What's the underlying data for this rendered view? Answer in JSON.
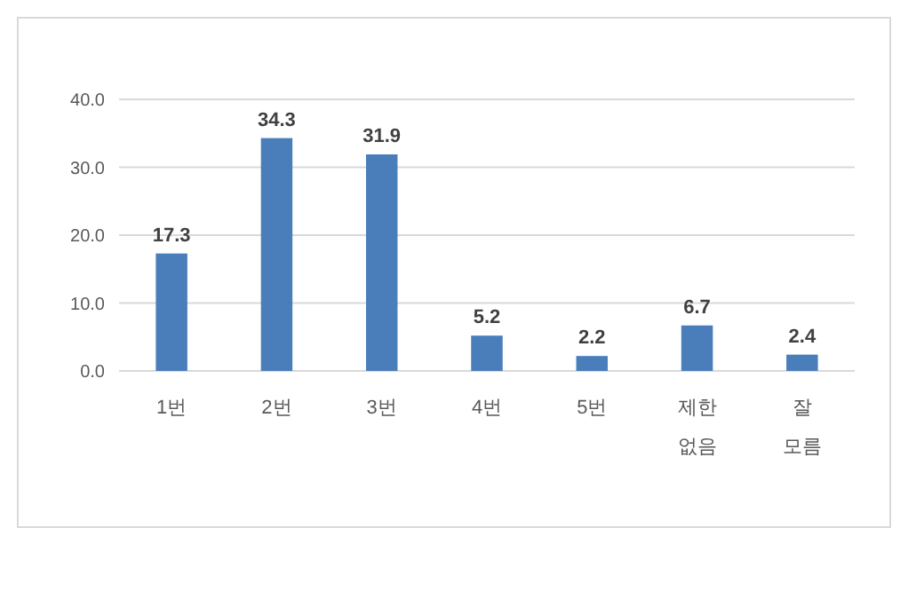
{
  "chart_data": {
    "type": "bar",
    "categories": [
      "1번",
      "2번",
      "3번",
      "4번",
      "5번",
      "제한 없음",
      "잘 모름"
    ],
    "values": [
      17.3,
      34.3,
      31.9,
      5.2,
      2.2,
      6.7,
      2.4
    ],
    "color": "#4a7ebb",
    "ylim": [
      0,
      40
    ],
    "yticks": [
      {
        "value": 0,
        "label": "0.0"
      },
      {
        "value": 10,
        "label": "10.0"
      },
      {
        "value": 20,
        "label": "20.0"
      },
      {
        "value": 30,
        "label": "30.0"
      },
      {
        "value": 40,
        "label": "40.0"
      }
    ],
    "grid": "y",
    "data_labels": true
  }
}
